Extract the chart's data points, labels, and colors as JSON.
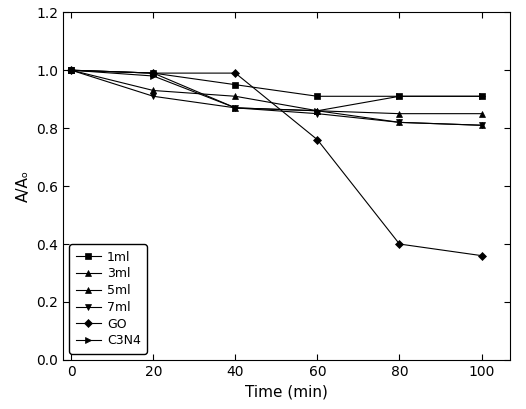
{
  "title": "",
  "xlabel": "Time (min)",
  "ylabel": "A/Aₒ",
  "xlim": [
    -2,
    107
  ],
  "ylim": [
    0.0,
    1.2
  ],
  "xticks": [
    0,
    20,
    40,
    60,
    80,
    100
  ],
  "yticks": [
    0.0,
    0.2,
    0.4,
    0.6,
    0.8,
    1.0,
    1.2
  ],
  "series": [
    {
      "label": "1ml",
      "x": [
        0,
        20,
        40,
        60,
        80,
        100
      ],
      "y": [
        1.0,
        0.99,
        0.95,
        0.91,
        0.91,
        0.91
      ],
      "marker": "s"
    },
    {
      "label": "3ml",
      "x": [
        0,
        20,
        40,
        60,
        80,
        100
      ],
      "y": [
        1.0,
        0.99,
        0.87,
        0.86,
        0.85,
        0.85
      ],
      "marker": "^"
    },
    {
      "label": "5ml",
      "x": [
        0,
        20,
        40,
        60,
        80,
        100
      ],
      "y": [
        1.0,
        0.93,
        0.91,
        0.86,
        0.82,
        0.81
      ],
      "marker": "^"
    },
    {
      "label": "7ml",
      "x": [
        0,
        20,
        40,
        60,
        80,
        100
      ],
      "y": [
        1.0,
        0.91,
        0.87,
        0.85,
        0.82,
        0.81
      ],
      "marker": "v"
    },
    {
      "label": "GO",
      "x": [
        0,
        20,
        40,
        60,
        80,
        100
      ],
      "y": [
        1.0,
        0.99,
        0.99,
        0.76,
        0.4,
        0.36
      ],
      "marker": "D"
    },
    {
      "label": "C3N4",
      "x": [
        0,
        20,
        40,
        60,
        80,
        100
      ],
      "y": [
        1.0,
        0.98,
        0.87,
        0.86,
        0.91,
        0.91
      ],
      "marker": ">"
    }
  ],
  "legend_loc": "lower left",
  "background_color": "#ffffff",
  "figure_width": 5.26,
  "figure_height": 4.09,
  "dpi": 100
}
